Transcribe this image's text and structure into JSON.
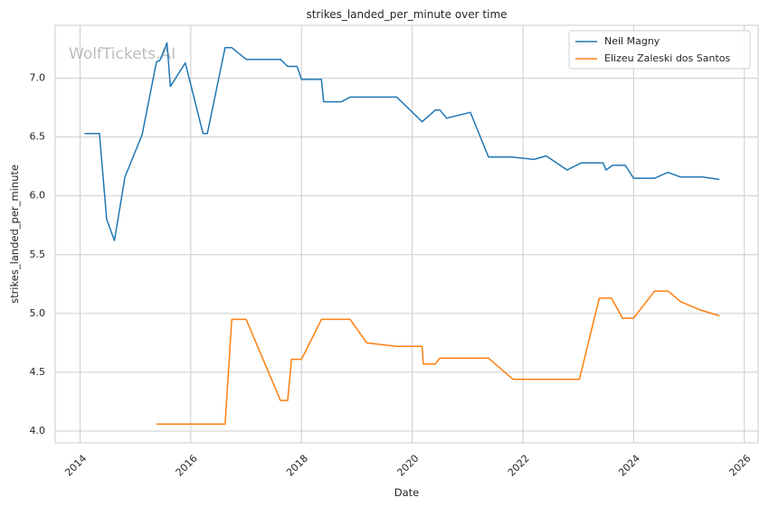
{
  "watermark": "WolfTickets.AI",
  "chart_data": {
    "type": "line",
    "title": "strikes_landed_per_minute over time",
    "xlabel": "Date",
    "ylabel": "strikes_landed_per_minute",
    "xlim": [
      2013.55,
      2026.25
    ],
    "ylim": [
      3.9,
      7.45
    ],
    "x_ticks": [
      2014,
      2016,
      2018,
      2020,
      2022,
      2024,
      2026
    ],
    "x_tick_labels": [
      "2014",
      "2016",
      "2018",
      "2020",
      "2022",
      "2024",
      "2026"
    ],
    "y_ticks": [
      4.0,
      4.5,
      5.0,
      5.5,
      6.0,
      6.5,
      7.0
    ],
    "y_tick_labels": [
      "4.0",
      "4.5",
      "5.0",
      "5.5",
      "6.0",
      "6.5",
      "7.0"
    ],
    "grid": true,
    "legend_position": "top-right",
    "series": [
      {
        "name": "Neil Magny",
        "color": "#1f77b4",
        "x": [
          2014.08,
          2014.35,
          2014.48,
          2014.62,
          2014.81,
          2015.12,
          2015.38,
          2015.44,
          2015.57,
          2015.63,
          2015.9,
          2016.22,
          2016.3,
          2016.62,
          2016.74,
          2017.0,
          2017.1,
          2017.62,
          2017.75,
          2017.92,
          2018.0,
          2018.36,
          2018.4,
          2018.72,
          2018.88,
          2019.72,
          2020.18,
          2020.42,
          2020.5,
          2020.62,
          2021.05,
          2021.38,
          2021.8,
          2022.2,
          2022.42,
          2022.8,
          2023.05,
          2023.45,
          2023.5,
          2023.62,
          2023.85,
          2024.0,
          2024.38,
          2024.62,
          2024.85,
          2025.25,
          2025.55
        ],
        "y": [
          6.53,
          6.53,
          5.8,
          5.62,
          6.16,
          6.52,
          7.14,
          7.15,
          7.3,
          6.93,
          7.13,
          6.53,
          6.53,
          7.26,
          7.26,
          7.16,
          7.16,
          7.16,
          7.1,
          7.1,
          6.99,
          6.99,
          6.8,
          6.8,
          6.84,
          6.84,
          6.63,
          6.73,
          6.73,
          6.66,
          6.71,
          6.33,
          6.33,
          6.31,
          6.34,
          6.22,
          6.28,
          6.28,
          6.22,
          6.26,
          6.26,
          6.15,
          6.15,
          6.2,
          6.16,
          6.16,
          6.14
        ]
      },
      {
        "name": "Elizeu Zaleski dos Santos",
        "color": "#ff7f0e",
        "x": [
          2015.38,
          2016.62,
          2016.74,
          2017.0,
          2017.62,
          2017.75,
          2017.82,
          2018.0,
          2018.36,
          2018.88,
          2019.18,
          2019.72,
          2020.18,
          2020.2,
          2020.42,
          2020.5,
          2021.38,
          2021.82,
          2022.3,
          2023.02,
          2023.38,
          2023.6,
          2023.8,
          2024.0,
          2024.38,
          2024.62,
          2024.85,
          2025.2,
          2025.55
        ],
        "y": [
          4.06,
          4.06,
          4.95,
          4.95,
          4.26,
          4.26,
          4.61,
          4.61,
          4.95,
          4.95,
          4.75,
          4.72,
          4.72,
          4.57,
          4.57,
          4.62,
          4.62,
          4.44,
          4.44,
          4.44,
          5.13,
          5.13,
          4.96,
          4.96,
          5.19,
          5.19,
          5.1,
          5.03,
          4.98
        ]
      }
    ]
  }
}
